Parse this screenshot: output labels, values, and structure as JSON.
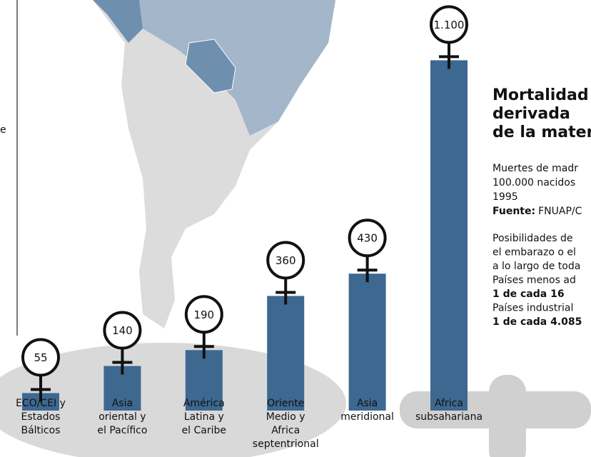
{
  "chart_data": {
    "type": "bar",
    "categories": [
      [
        "ECO/CEI y",
        "Estados",
        "Bálticos"
      ],
      [
        "Asia",
        "oriental y",
        "el Pacífico"
      ],
      [
        "América",
        "Latina y",
        "el Caribe"
      ],
      [
        "Oriente",
        "Medio y",
        "Africa",
        "septentrional"
      ],
      [
        "Asia",
        "meridional"
      ],
      [
        "Africa",
        "subsahariana"
      ]
    ],
    "values": [
      55,
      140,
      190,
      360,
      430,
      1100
    ],
    "value_labels": [
      "55",
      "140",
      "190",
      "360",
      "430",
      "1.100"
    ],
    "color": "#3d6890",
    "title": [
      "Mortalidad",
      "derivada",
      "de la mater"
    ],
    "subtitle": [
      "Muertes de madr",
      "100.000 nacidos",
      "1995"
    ],
    "source": {
      "label": "Fuente:",
      "text": "FNUAP/C"
    },
    "notes": [
      "Posibilidades de",
      "el embarazo o el",
      "a lo largo de toda",
      "Países menos ad",
      "1 de cada 16",
      "Países industrial",
      "1 de cada 4.085"
    ],
    "fragment": "e"
  }
}
